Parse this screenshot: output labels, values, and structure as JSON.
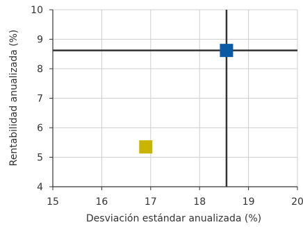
{
  "chart_data": {
    "type": "scatter",
    "xlabel": "Desviación estándar anualizada (%)",
    "ylabel": "Rentabilidad anualizada (%)",
    "xlim": [
      15,
      20
    ],
    "ylim": [
      4,
      10
    ],
    "x_ticks": [
      "15",
      "16",
      "17",
      "18",
      "19",
      "20"
    ],
    "y_ticks": [
      "4",
      "5",
      "6",
      "7",
      "8",
      "9",
      "10"
    ],
    "grid": true,
    "series": [
      {
        "x": 16.9,
        "y": 5.35,
        "color": "#c9b400",
        "marker": "square"
      },
      {
        "x": 18.55,
        "y": 8.62,
        "color": "#0b5aa6",
        "marker": "square"
      }
    ],
    "reference_lines": {
      "x": 18.55,
      "y": 8.62,
      "color": "#333333"
    }
  }
}
